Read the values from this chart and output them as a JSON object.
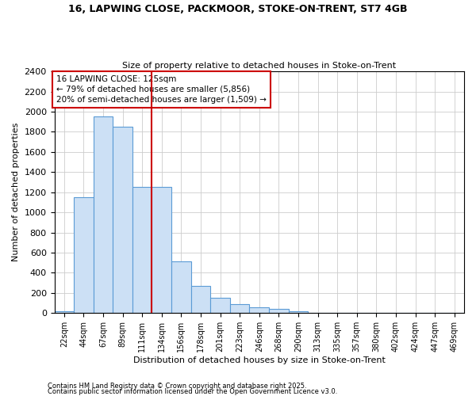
{
  "title1": "16, LAPWING CLOSE, PACKMOOR, STOKE-ON-TRENT, ST7 4GB",
  "title2": "Size of property relative to detached houses in Stoke-on-Trent",
  "xlabel": "Distribution of detached houses by size in Stoke-on-Trent",
  "ylabel": "Number of detached properties",
  "categories": [
    "22sqm",
    "44sqm",
    "67sqm",
    "89sqm",
    "111sqm",
    "134sqm",
    "156sqm",
    "178sqm",
    "201sqm",
    "223sqm",
    "246sqm",
    "268sqm",
    "290sqm",
    "313sqm",
    "335sqm",
    "357sqm",
    "380sqm",
    "402sqm",
    "424sqm",
    "447sqm",
    "469sqm"
  ],
  "values": [
    20,
    1150,
    1950,
    1850,
    1250,
    1250,
    510,
    270,
    150,
    90,
    60,
    40,
    15,
    5,
    3,
    2,
    1,
    1,
    0,
    0,
    0
  ],
  "bar_color": "#cce0f5",
  "bar_edge_color": "#5b9bd5",
  "property_line_color": "#cc0000",
  "annotation_box_text": "16 LAPWING CLOSE: 125sqm\n← 79% of detached houses are smaller (5,856)\n20% of semi-detached houses are larger (1,509) →",
  "ylim": [
    0,
    2400
  ],
  "yticks": [
    0,
    200,
    400,
    600,
    800,
    1000,
    1200,
    1400,
    1600,
    1800,
    2000,
    2200,
    2400
  ],
  "footnote1": "Contains HM Land Registry data © Crown copyright and database right 2025.",
  "footnote2": "Contains public sector information licensed under the Open Government Licence v3.0."
}
